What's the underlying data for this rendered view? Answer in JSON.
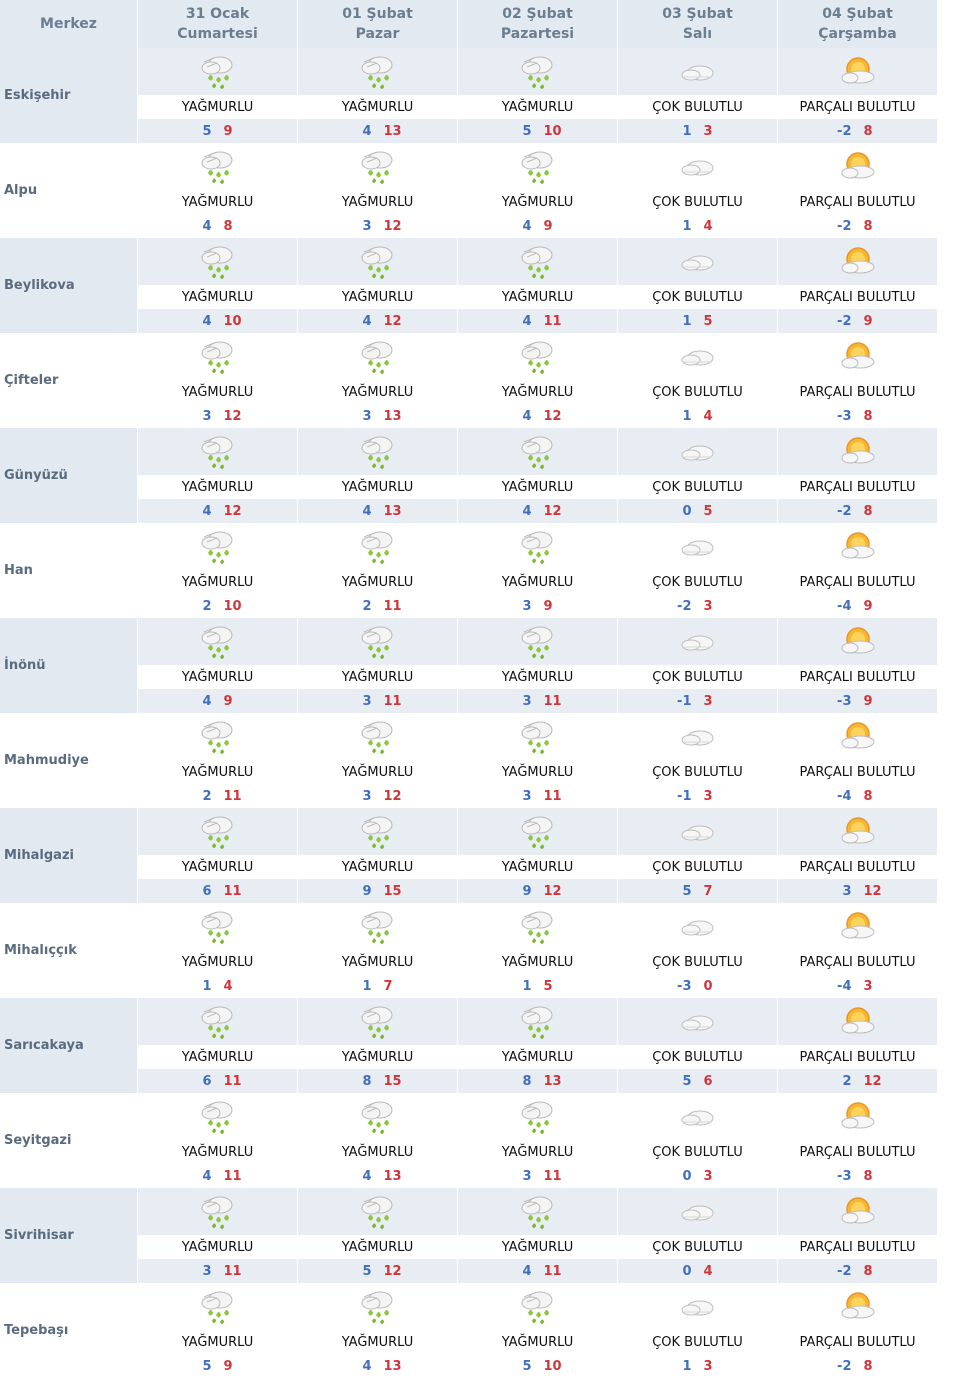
{
  "header": {
    "merkez_label": "Merkez",
    "days": [
      {
        "date": "31 Ocak",
        "weekday": "Cumartesi"
      },
      {
        "date": "01 Şubat",
        "weekday": "Pazar"
      },
      {
        "date": "02 Şubat",
        "weekday": "Pazartesi"
      },
      {
        "date": "03 Şubat",
        "weekday": "Salı"
      },
      {
        "date": "04 Şubat",
        "weekday": "Çarşamba"
      }
    ]
  },
  "conditions": {
    "rain": {
      "label": "YAĞMURLU",
      "icon": "rain-cloud-icon"
    },
    "cloudy": {
      "label": "ÇOK BULUTLU",
      "icon": "cloud-icon"
    },
    "partly": {
      "label": "PARÇALI BULUTLU",
      "icon": "sun-cloud-icon"
    }
  },
  "day_conditions": [
    "rain",
    "rain",
    "rain",
    "cloudy",
    "partly"
  ],
  "rows": [
    {
      "city": "Eskişehir",
      "temps": [
        [
          5,
          9
        ],
        [
          4,
          13
        ],
        [
          5,
          10
        ],
        [
          1,
          3
        ],
        [
          -2,
          8
        ]
      ]
    },
    {
      "city": "Alpu",
      "temps": [
        [
          4,
          8
        ],
        [
          3,
          12
        ],
        [
          4,
          9
        ],
        [
          1,
          4
        ],
        [
          -2,
          8
        ]
      ]
    },
    {
      "city": "Beylikova",
      "temps": [
        [
          4,
          10
        ],
        [
          4,
          12
        ],
        [
          4,
          11
        ],
        [
          1,
          5
        ],
        [
          -2,
          9
        ]
      ]
    },
    {
      "city": "Çifteler",
      "temps": [
        [
          3,
          12
        ],
        [
          3,
          13
        ],
        [
          4,
          12
        ],
        [
          1,
          4
        ],
        [
          -3,
          8
        ]
      ]
    },
    {
      "city": "Günyüzü",
      "temps": [
        [
          4,
          12
        ],
        [
          4,
          13
        ],
        [
          4,
          12
        ],
        [
          0,
          5
        ],
        [
          -2,
          8
        ]
      ]
    },
    {
      "city": "Han",
      "temps": [
        [
          2,
          10
        ],
        [
          2,
          11
        ],
        [
          3,
          9
        ],
        [
          -2,
          3
        ],
        [
          -4,
          9
        ]
      ]
    },
    {
      "city": "İnönü",
      "temps": [
        [
          4,
          9
        ],
        [
          3,
          11
        ],
        [
          3,
          11
        ],
        [
          -1,
          3
        ],
        [
          -3,
          9
        ]
      ]
    },
    {
      "city": "Mahmudiye",
      "temps": [
        [
          2,
          11
        ],
        [
          3,
          12
        ],
        [
          3,
          11
        ],
        [
          -1,
          3
        ],
        [
          -4,
          8
        ]
      ]
    },
    {
      "city": "Mihalgazi",
      "temps": [
        [
          6,
          11
        ],
        [
          9,
          15
        ],
        [
          9,
          12
        ],
        [
          5,
          7
        ],
        [
          3,
          12
        ]
      ]
    },
    {
      "city": "Mihalıççık",
      "temps": [
        [
          1,
          4
        ],
        [
          1,
          7
        ],
        [
          1,
          5
        ],
        [
          -3,
          0
        ],
        [
          -4,
          3
        ]
      ]
    },
    {
      "city": "Sarıcakaya",
      "temps": [
        [
          6,
          11
        ],
        [
          8,
          15
        ],
        [
          8,
          13
        ],
        [
          5,
          6
        ],
        [
          2,
          12
        ]
      ]
    },
    {
      "city": "Seyitgazi",
      "temps": [
        [
          4,
          11
        ],
        [
          4,
          13
        ],
        [
          3,
          11
        ],
        [
          0,
          3
        ],
        [
          -3,
          8
        ]
      ]
    },
    {
      "city": "Sivrihisar",
      "temps": [
        [
          3,
          11
        ],
        [
          5,
          12
        ],
        [
          4,
          11
        ],
        [
          0,
          4
        ],
        [
          -2,
          8
        ]
      ]
    },
    {
      "city": "Tepebaşı",
      "temps": [
        [
          5,
          9
        ],
        [
          4,
          13
        ],
        [
          5,
          10
        ],
        [
          1,
          3
        ],
        [
          -2,
          8
        ]
      ]
    }
  ],
  "colors": {
    "min_temp": "#3f6fbf",
    "max_temp": "#d0353a",
    "alt_row": "#e3e9f0"
  }
}
